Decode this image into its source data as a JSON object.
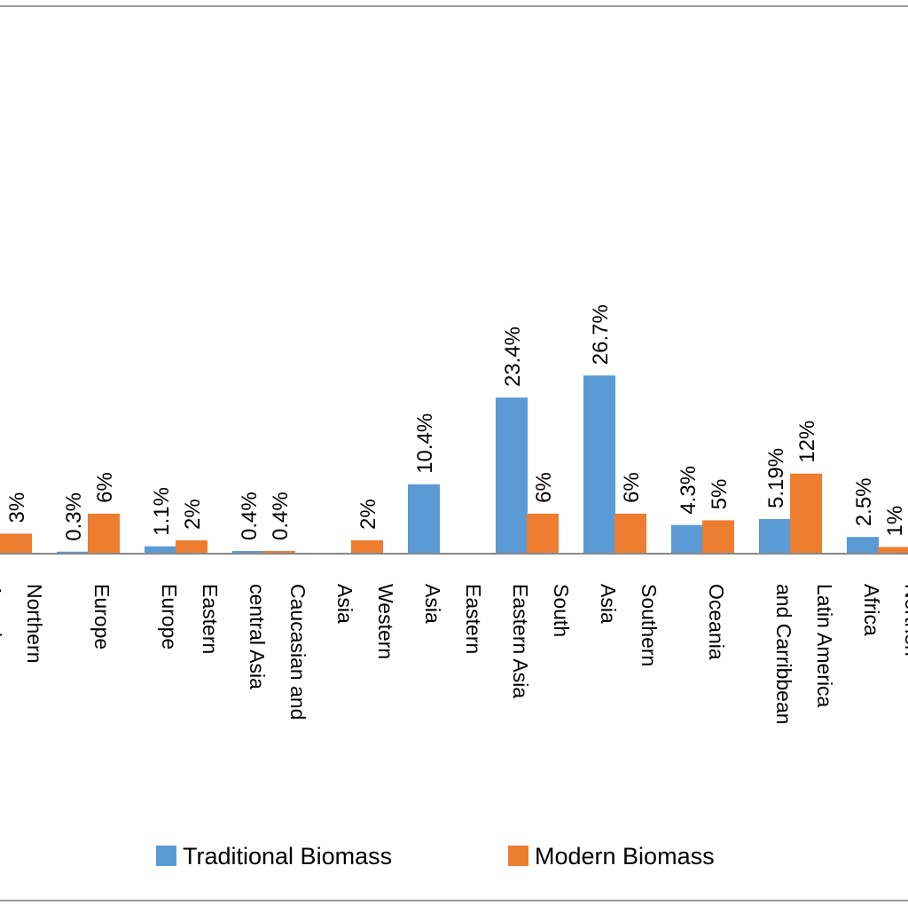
{
  "chart_data": {
    "type": "bar",
    "categories": [
      [
        "Northern",
        "America"
      ],
      [
        "Europe"
      ],
      [
        "Eastern",
        "Europe"
      ],
      [
        "Caucasian and",
        "central Asia"
      ],
      [
        "Western",
        "Asia"
      ],
      [
        "Eastern",
        "Asia"
      ],
      [
        "South",
        "Eastern Asia"
      ],
      [
        "Southern",
        "Asia"
      ],
      [
        "Oceania"
      ],
      [
        "Latin America",
        "and Carribbean"
      ],
      [
        "Northen",
        "Africa"
      ]
    ],
    "series": [
      {
        "name": "Traditional Biomass",
        "color": "#5B9BD5",
        "values": [
          null,
          0.3,
          1.1,
          0.4,
          null,
          10.4,
          23.4,
          26.7,
          4.3,
          5.19,
          2.5
        ],
        "labels": [
          "",
          "0.3%",
          "1.1%",
          "0.4%",
          "",
          "10.4%",
          "23.4%",
          "26.7%",
          "4.3%",
          "5.19%",
          "2.5%"
        ]
      },
      {
        "name": "Modern Biomass",
        "color": "#ED7D31",
        "values": [
          3,
          6,
          2,
          0.4,
          2,
          null,
          6,
          6,
          5,
          12,
          1
        ],
        "labels": [
          "3%",
          "6%",
          "2%",
          "0.4%",
          "2%",
          "",
          "6%",
          "6%",
          "5%",
          "12%",
          "1%"
        ]
      }
    ],
    "legend": "bottom",
    "grid": false
  }
}
